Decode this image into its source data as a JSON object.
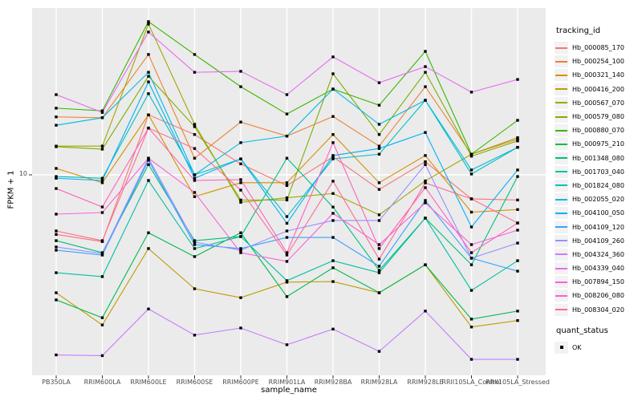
{
  "figure": {
    "background": "#FFFFFF",
    "panel_background": "#EBEBEB",
    "grid_color": "#FFFFFF",
    "marker_color": "#000000",
    "axis_text_color": "#4D4D4D",
    "axis_title_color": "#000000"
  },
  "chart_data": {
    "type": "line",
    "title": "",
    "xlabel": "sample_name",
    "ylabel": "FPKM + 1",
    "y_scale": "log10",
    "grid": "major-on",
    "y_axis_ticks": [
      {
        "label": "10",
        "value": 10
      }
    ],
    "categories": [
      "PB350LA",
      "RRIM600LA",
      "RRIM600LE",
      "RRIM600SE",
      "RRIM600PE",
      "RRIM901LA",
      "RRIM928BA",
      "RRIM928LA",
      "RRIM928LE",
      "RRII105LA_Control",
      "RRII105LA_Stressed"
    ],
    "legend": {
      "title": "tracking_id",
      "position": "right"
    },
    "quant_legend": {
      "title": "quant_status",
      "items": [
        {
          "label": "OK",
          "marker": "filled-square"
        }
      ]
    },
    "series": [
      {
        "name": "Hb_000085_170",
        "color": "#F8766D",
        "values": [
          4.9,
          4.5,
          20.5,
          16.2,
          11.4,
          8.8,
          12.4,
          8.4,
          11.7,
          7.5,
          7.4
        ]
      },
      {
        "name": "Hb_000254_100",
        "color": "#EA8331",
        "values": [
          20.0,
          19.8,
          42.2,
          12.2,
          18.8,
          15.9,
          20.1,
          14.1,
          28.7,
          12.8,
          15.3
        ]
      },
      {
        "name": "Hb_000321_140",
        "color": "#D89000",
        "values": [
          10.8,
          9.1,
          20.5,
          7.7,
          9.1,
          9.1,
          16.2,
          9.1,
          12.6,
          6.4,
          6.6
        ]
      },
      {
        "name": "Hb_000416_200",
        "color": "#C09B00",
        "values": [
          2.44,
          1.66,
          4.14,
          2.56,
          2.3,
          2.77,
          2.79,
          2.44,
          3.41,
          1.62,
          1.75
        ]
      },
      {
        "name": "Hb_000567_070",
        "color": "#A3A500",
        "values": [
          14.1,
          14.1,
          60.7,
          18.3,
          7.2,
          7.6,
          8.0,
          6.2,
          9.3,
          12.8,
          15.6
        ]
      },
      {
        "name": "Hb_000579_080",
        "color": "#7CAE00",
        "values": [
          14.0,
          13.6,
          32.5,
          17.8,
          7.4,
          7.4,
          33.5,
          16.2,
          34.1,
          12.5,
          15.0
        ]
      },
      {
        "name": "Hb_000880_070",
        "color": "#39B600",
        "values": [
          22.2,
          21.5,
          62.5,
          42.2,
          28.7,
          20.7,
          27.9,
          23.0,
          43.8,
          12.8,
          19.2
        ]
      },
      {
        "name": "Hb_000975_210",
        "color": "#00BB4E",
        "values": [
          2.24,
          1.81,
          5.0,
          3.76,
          5.0,
          2.33,
          3.29,
          2.44,
          3.41,
          1.78,
          1.96
        ]
      },
      {
        "name": "Hb_001348_080",
        "color": "#00BF7D",
        "values": [
          4.55,
          3.94,
          11.3,
          4.55,
          4.78,
          12.2,
          6.8,
          3.19,
          5.96,
          3.41,
          9.8
        ]
      },
      {
        "name": "Hb_001703_040",
        "color": "#00C1A3",
        "values": [
          3.1,
          2.96,
          9.35,
          4.14,
          4.78,
          2.82,
          3.58,
          3.1,
          5.96,
          2.51,
          3.58
        ]
      },
      {
        "name": "Hb_001824_080",
        "color": "#00BFC4",
        "values": [
          9.8,
          9.6,
          26.4,
          10.0,
          12.1,
          6.07,
          12.1,
          12.8,
          24.4,
          10.1,
          13.9
        ]
      },
      {
        "name": "Hb_002055_020",
        "color": "#00BAE0",
        "values": [
          18.1,
          19.8,
          34.1,
          10.0,
          14.7,
          15.9,
          27.9,
          18.3,
          24.4,
          10.6,
          13.9
        ]
      },
      {
        "name": "Hb_004100_050",
        "color": "#00B0F6",
        "values": [
          9.6,
          9.35,
          30.4,
          9.6,
          12.1,
          5.6,
          12.6,
          13.7,
          16.6,
          5.36,
          10.6
        ]
      },
      {
        "name": "Hb_004109_120",
        "color": "#35A2FF",
        "values": [
          4.06,
          3.83,
          11.9,
          4.34,
          4.14,
          4.73,
          4.73,
          3.35,
          7.36,
          3.69,
          3.16
        ]
      },
      {
        "name": "Hb_004109_260",
        "color": "#9590FF",
        "values": [
          4.22,
          3.9,
          12.2,
          4.47,
          4.06,
          5.11,
          5.79,
          5.79,
          11.3,
          3.69,
          4.42
        ]
      },
      {
        "name": "Hb_004324_360",
        "color": "#C77CFF",
        "values": [
          1.16,
          1.15,
          2.01,
          1.47,
          1.6,
          1.31,
          1.58,
          1.21,
          1.96,
          1.1,
          1.1
        ]
      },
      {
        "name": "Hb_004339_040",
        "color": "#E76BF3",
        "values": [
          26.1,
          21.1,
          55.2,
          34.1,
          34.5,
          26.1,
          41.0,
          30.1,
          36.5,
          26.9,
          31.3
        ]
      },
      {
        "name": "Hb_007894_150",
        "color": "#FA62DB",
        "values": [
          6.25,
          6.37,
          12.2,
          8.1,
          3.94,
          3.55,
          6.31,
          4.34,
          7.15,
          4.34,
          5.16
        ]
      },
      {
        "name": "Hb_008206_080",
        "color": "#FF62BC",
        "values": [
          8.49,
          6.81,
          17.5,
          9.35,
          9.44,
          3.94,
          14.7,
          4.14,
          8.58,
          3.94,
          5.62
        ]
      },
      {
        "name": "Hb_008304_020",
        "color": "#FF6A98",
        "values": [
          5.11,
          4.55,
          17.5,
          13.7,
          8.33,
          3.83,
          9.27,
          3.65,
          9.08,
          7.5,
          5.62
        ]
      }
    ]
  }
}
